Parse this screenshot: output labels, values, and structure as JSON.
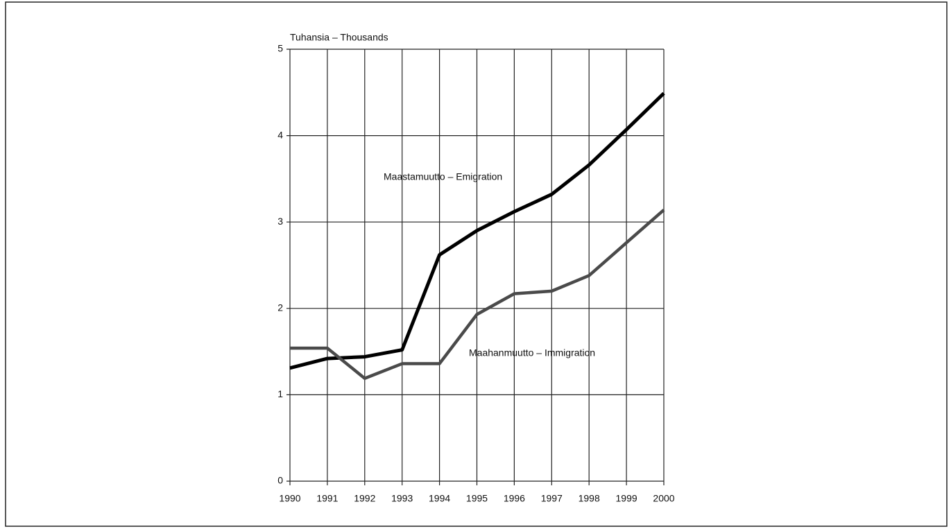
{
  "chart_data": {
    "type": "line",
    "y_label": "Tuhansia – Thousands",
    "x": [
      1990,
      1991,
      1992,
      1993,
      1994,
      1995,
      1996,
      1997,
      1998,
      1999,
      2000
    ],
    "series": [
      {
        "name": "Maastamuutto – Emigration",
        "color": "#000000",
        "values": [
          1.31,
          1.42,
          1.44,
          1.52,
          2.62,
          2.9,
          3.12,
          3.32,
          3.66,
          4.07,
          4.49
        ]
      },
      {
        "name": "Maahanmuutto – Immigration",
        "color": "#4a4a4a",
        "values": [
          1.54,
          1.54,
          1.19,
          1.36,
          1.36,
          1.93,
          2.17,
          2.2,
          2.38,
          2.76,
          3.14
        ]
      }
    ],
    "xlim": [
      1990,
      2000
    ],
    "xticks": [
      1990,
      1991,
      1992,
      1993,
      1994,
      1995,
      1996,
      1997,
      1998,
      1999,
      2000
    ],
    "ylim": [
      0,
      5
    ],
    "yticks": [
      0,
      1,
      2,
      3,
      4,
      5
    ],
    "grid": true
  }
}
